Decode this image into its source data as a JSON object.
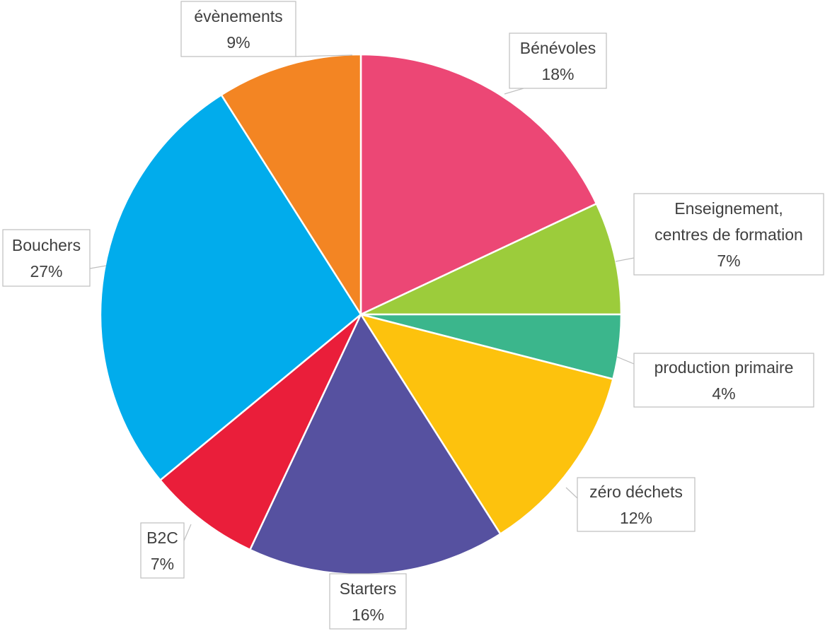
{
  "chart_data": {
    "type": "pie",
    "start_angle_deg": 90,
    "direction": "clockwise",
    "slices": [
      {
        "label": "Bénévoles",
        "label_lines": [
          "Bénévoles"
        ],
        "percent_label": "18%",
        "value": 18,
        "color": "#EC4775"
      },
      {
        "label": "Enseignement, centres de formation",
        "label_lines": [
          "Enseignement,",
          "centres de formation"
        ],
        "percent_label": "7%",
        "value": 7,
        "color": "#9CCC3B"
      },
      {
        "label": "production primaire",
        "label_lines": [
          "production primaire"
        ],
        "percent_label": "4%",
        "value": 4,
        "color": "#3BB68C"
      },
      {
        "label": "zéro déchets",
        "label_lines": [
          "zéro déchets"
        ],
        "percent_label": "12%",
        "value": 12,
        "color": "#FDC20D"
      },
      {
        "label": "Starters",
        "label_lines": [
          "Starters"
        ],
        "percent_label": "16%",
        "value": 16,
        "color": "#5651A0"
      },
      {
        "label": "B2C",
        "label_lines": [
          "B2C"
        ],
        "percent_label": "7%",
        "value": 7,
        "color": "#EA1E3A"
      },
      {
        "label": "Bouchers",
        "label_lines": [
          "Bouchers"
        ],
        "percent_label": "27%",
        "value": 27,
        "color": "#01ACEC"
      },
      {
        "label": "évènements",
        "label_lines": [
          "évènements"
        ],
        "percent_label": "9%",
        "value": 9,
        "color": "#F38523"
      }
    ],
    "data_labels": "category and percentage, in callout boxes with leader lines",
    "legend": "none"
  }
}
